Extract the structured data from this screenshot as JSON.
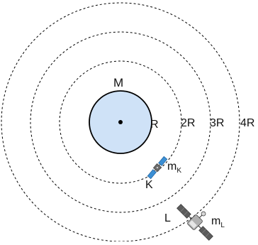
{
  "diagram": {
    "central_body_label": "M",
    "radius_label": "R",
    "orbit_labels": [
      "2R",
      "3R",
      "4R"
    ],
    "satellite_k": {
      "label": "K",
      "mass_main": "m",
      "mass_sub": "K"
    },
    "satellite_l": {
      "label": "L",
      "mass_main": "m",
      "mass_sub": "L"
    },
    "colors": {
      "planet_fill": "#cfe2f7",
      "planet_stroke": "#000000",
      "orbit_stroke": "#000000",
      "satellite_body": "#5a5a5a",
      "satellite_panel": "#3b8fd4"
    },
    "icons": [
      "satellite-k-icon",
      "satellite-l-icon"
    ]
  }
}
